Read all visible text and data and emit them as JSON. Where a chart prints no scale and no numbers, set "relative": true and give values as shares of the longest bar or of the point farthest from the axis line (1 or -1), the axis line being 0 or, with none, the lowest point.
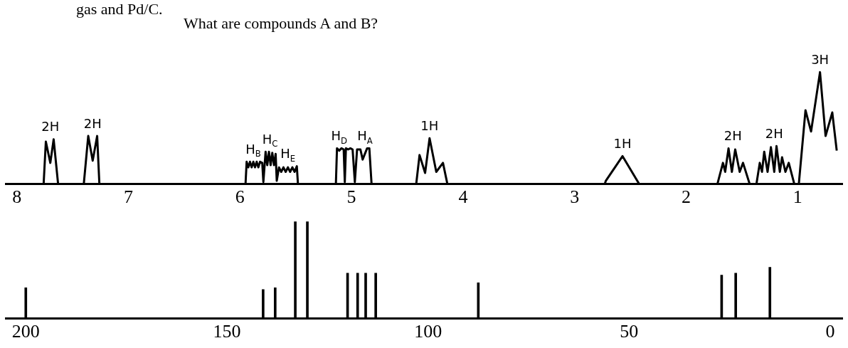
{
  "chart_data": [
    {
      "type": "line",
      "title": "What are compounds A and B?",
      "relative": true,
      "color": "#000000",
      "xlim": [
        8.1,
        0.6
      ],
      "xticks": [
        8,
        7,
        6,
        5,
        4,
        3,
        2,
        1
      ],
      "annotations": [
        "gas and Pd/C.",
        {
          "text": "2H",
          "x": 7.7,
          "y": 0.4
        },
        {
          "text": "2H",
          "x": 7.32,
          "y": 0.43
        },
        {
          "text": "H$_{B}$",
          "x": 5.88,
          "y": 0.2
        },
        {
          "text": "H$_{C}$",
          "x": 5.73,
          "y": 0.29
        },
        {
          "text": "H$_{E}$",
          "x": 5.57,
          "y": 0.16
        },
        {
          "text": "H$_{D}$",
          "x": 5.11,
          "y": 0.32
        },
        {
          "text": "H$_{A}$",
          "x": 4.88,
          "y": 0.32
        },
        {
          "text": "1H",
          "x": 4.3,
          "y": 0.41
        },
        {
          "text": "1H",
          "x": 2.57,
          "y": 0.25
        },
        {
          "text": "2H",
          "x": 1.58,
          "y": 0.32
        },
        {
          "text": "2H",
          "x": 1.21,
          "y": 0.34
        },
        {
          "text": "3H",
          "x": 0.8,
          "y": 1
        }
      ],
      "x": [
        8.1,
        7.76,
        7.74,
        7.7,
        7.67,
        7.63,
        7.4,
        7.36,
        7.32,
        7.28,
        7.26,
        5.95,
        5.94,
        5.925,
        5.91,
        5.895,
        5.88,
        5.865,
        5.85,
        5.835,
        5.82,
        5.8,
        5.79,
        5.77,
        5.755,
        5.74,
        5.725,
        5.71,
        5.695,
        5.68,
        5.67,
        5.65,
        5.63,
        5.61,
        5.59,
        5.57,
        5.55,
        5.53,
        5.51,
        5.49,
        5.48,
        5.14,
        5.13,
        5.11,
        5.09,
        5.07,
        5.06,
        5.05,
        5.03,
        5.01,
        4.99,
        4.97,
        4.95,
        4.92,
        4.9,
        4.86,
        4.84,
        4.82,
        4.42,
        4.39,
        4.34,
        4.3,
        4.24,
        4.18,
        4.14,
        2.73,
        2.72,
        2.57,
        2.42,
        1.72,
        1.67,
        1.65,
        1.62,
        1.59,
        1.56,
        1.52,
        1.49,
        1.43,
        1.37,
        1.34,
        1.32,
        1.3,
        1.27,
        1.24,
        1.21,
        1.19,
        1.16,
        1.14,
        1.11,
        1.08,
        1.03,
        0.99,
        0.93,
        0.88,
        0.8,
        0.75,
        0.69,
        0.65
      ],
      "values": [
        0,
        0,
        0.38,
        0.19,
        0.4,
        0,
        0,
        0.43,
        0.21,
        0.43,
        0,
        0,
        0.2,
        0.15,
        0.2,
        0.15,
        0.2,
        0.15,
        0.2,
        0.15,
        0.2,
        0.19,
        0.02,
        0.29,
        0.17,
        0.29,
        0.17,
        0.28,
        0.17,
        0.27,
        0.03,
        0.15,
        0.11,
        0.15,
        0.11,
        0.15,
        0.11,
        0.15,
        0.11,
        0.16,
        0,
        0,
        0.32,
        0.3,
        0.32,
        0.31,
        0.02,
        0.32,
        0.31,
        0.32,
        0.31,
        0.02,
        0.31,
        0.31,
        0.22,
        0.32,
        0.32,
        0,
        0,
        0.26,
        0.1,
        0.41,
        0.11,
        0.19,
        0,
        0,
        0.03,
        0.25,
        0,
        0,
        0.19,
        0.11,
        0.32,
        0.11,
        0.31,
        0.11,
        0.19,
        0,
        0,
        0.19,
        0.11,
        0.29,
        0.11,
        0.33,
        0.11,
        0.34,
        0.11,
        0.24,
        0.11,
        0.19,
        0,
        0,
        0.66,
        0.47,
        1,
        0.43,
        0.64,
        0.3
      ]
    },
    {
      "type": "bar",
      "relative": true,
      "color": "#000000",
      "xlim": [
        205,
        -3
      ],
      "xticks": [
        200,
        150,
        100,
        50,
        0
      ],
      "x": [
        200,
        141,
        138,
        133,
        130,
        120,
        117.5,
        115.5,
        113,
        87.5,
        27,
        23.5,
        15
      ],
      "values": [
        0.32,
        0.3,
        0.32,
        1,
        1,
        0.47,
        0.47,
        0.47,
        0.47,
        0.37,
        0.45,
        0.47,
        0.53
      ]
    }
  ]
}
